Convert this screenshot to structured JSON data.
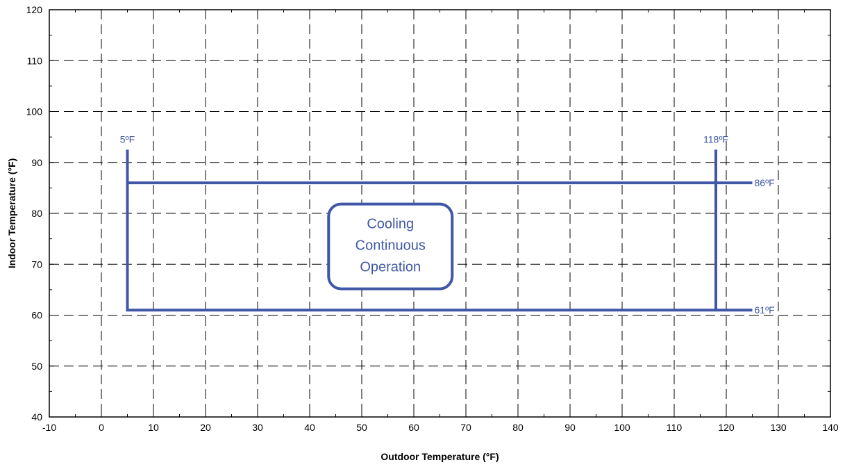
{
  "chart_data": {
    "type": "line",
    "xlabel": "Outdoor Temperature (°F)",
    "ylabel": "Indoor Temperature (°F)",
    "xlim": [
      -10,
      140
    ],
    "ylim": [
      40,
      120
    ],
    "x_ticks": [
      "-10",
      "0",
      "10",
      "20",
      "30",
      "40",
      "50",
      "60",
      "70",
      "80",
      "90",
      "100",
      "110",
      "120",
      "130",
      "140"
    ],
    "y_ticks": [
      "40",
      "50",
      "60",
      "70",
      "80",
      "90",
      "100",
      "110",
      "120"
    ],
    "grid": true,
    "line_color": "#3f57a6",
    "series": [
      {
        "values": [
          [
            5,
            92.5
          ],
          [
            5,
            86
          ],
          [
            5,
            61
          ],
          [
            118,
            61
          ],
          [
            118,
            86
          ],
          [
            5,
            86
          ]
        ]
      },
      {
        "values": [
          [
            118,
            92.5
          ],
          [
            118,
            61
          ]
        ]
      },
      {
        "values": [
          [
            118,
            86
          ],
          [
            125,
            86
          ]
        ]
      },
      {
        "values": [
          [
            118,
            61
          ],
          [
            125,
            61
          ]
        ]
      }
    ],
    "annotations": [
      {
        "text": "5ºF",
        "x": 5,
        "y": 92.5
      },
      {
        "text": "118ºF",
        "x": 118,
        "y": 92.5
      },
      {
        "text": "86ºF",
        "x": 125,
        "y": 86
      },
      {
        "text": "61ºF",
        "x": 125,
        "y": 61
      }
    ],
    "region_label": [
      "Cooling",
      "Continuous",
      "Operation"
    ]
  }
}
